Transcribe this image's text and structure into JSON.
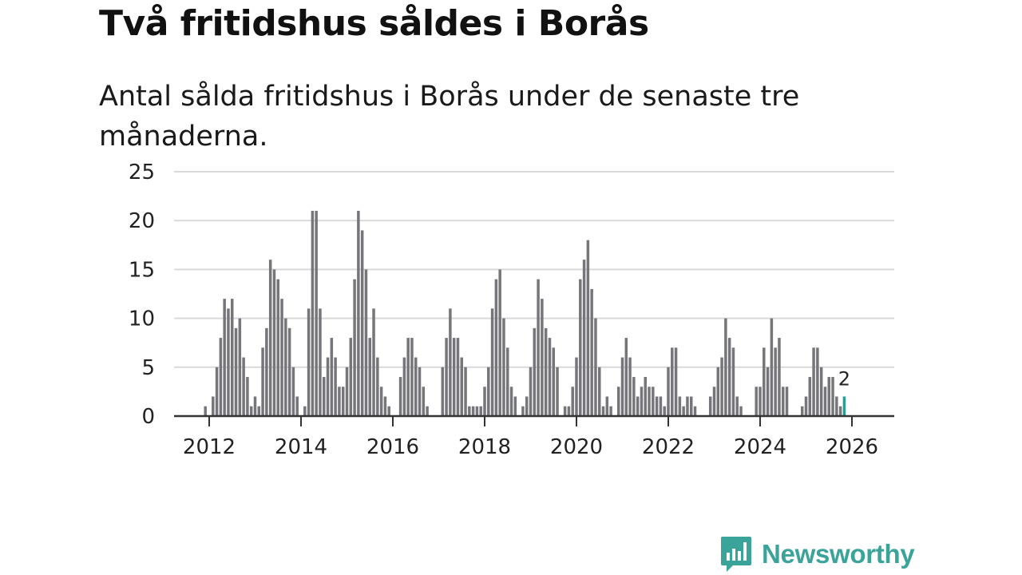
{
  "header": {
    "title": "Två fritidshus såldes i Borås",
    "subtitle": "Antal sålda fritidshus i Borås under de senaste tre månaderna."
  },
  "brand": {
    "name": "Newsworthy",
    "color": "#3aa39a",
    "icon": "bar-chart-bubble-icon"
  },
  "colors": {
    "bar": "#76767a",
    "highlight": "#2a9d92",
    "grid": "#d9d9d9",
    "axis": "#333333"
  },
  "chart_data": {
    "type": "bar",
    "title": "Två fritidshus såldes i Borås",
    "subtitle": "Antal sålda fritidshus i Borås under de senaste tre månaderna.",
    "xlabel": "",
    "ylabel": "",
    "ylim": [
      0,
      25
    ],
    "y_ticks": [
      0,
      5,
      10,
      15,
      20,
      25
    ],
    "x_ticks": [
      "2012",
      "2014",
      "2016",
      "2018",
      "2020",
      "2022",
      "2024",
      "2026"
    ],
    "x_tick_values": [
      2012,
      2014,
      2016,
      2018,
      2020,
      2022,
      2024,
      2026
    ],
    "start": "2011-12",
    "frequency": "monthly",
    "grid": true,
    "values": [
      1,
      0,
      2,
      5,
      8,
      12,
      11,
      12,
      9,
      10,
      6,
      4,
      1,
      2,
      1,
      7,
      9,
      16,
      15,
      14,
      12,
      10,
      9,
      5,
      2,
      0,
      1,
      11,
      21,
      21,
      11,
      4,
      6,
      8,
      6,
      3,
      3,
      5,
      8,
      14,
      21,
      19,
      15,
      8,
      11,
      6,
      3,
      2,
      1,
      0,
      0,
      4,
      6,
      8,
      8,
      6,
      5,
      3,
      1,
      0,
      0,
      0,
      5,
      8,
      11,
      8,
      8,
      6,
      5,
      1,
      1,
      1,
      1,
      3,
      5,
      11,
      14,
      15,
      10,
      7,
      3,
      2,
      0,
      1,
      2,
      5,
      9,
      14,
      12,
      9,
      8,
      7,
      5,
      0,
      1,
      1,
      3,
      6,
      14,
      16,
      18,
      13,
      10,
      5,
      1,
      2,
      1,
      0,
      3,
      6,
      8,
      6,
      4,
      2,
      3,
      4,
      3,
      3,
      2,
      2,
      1,
      5,
      7,
      7,
      2,
      1,
      2,
      2,
      1,
      0,
      0,
      0,
      2,
      3,
      5,
      6,
      10,
      8,
      7,
      2,
      1,
      0,
      0,
      0,
      3,
      3,
      7,
      5,
      10,
      7,
      8,
      3,
      3,
      0,
      0,
      0,
      1,
      2,
      4,
      7,
      7,
      5,
      3,
      4,
      4,
      2,
      1,
      2
    ],
    "highlight_last": true,
    "annotation": {
      "label": "2",
      "target": "last"
    }
  }
}
